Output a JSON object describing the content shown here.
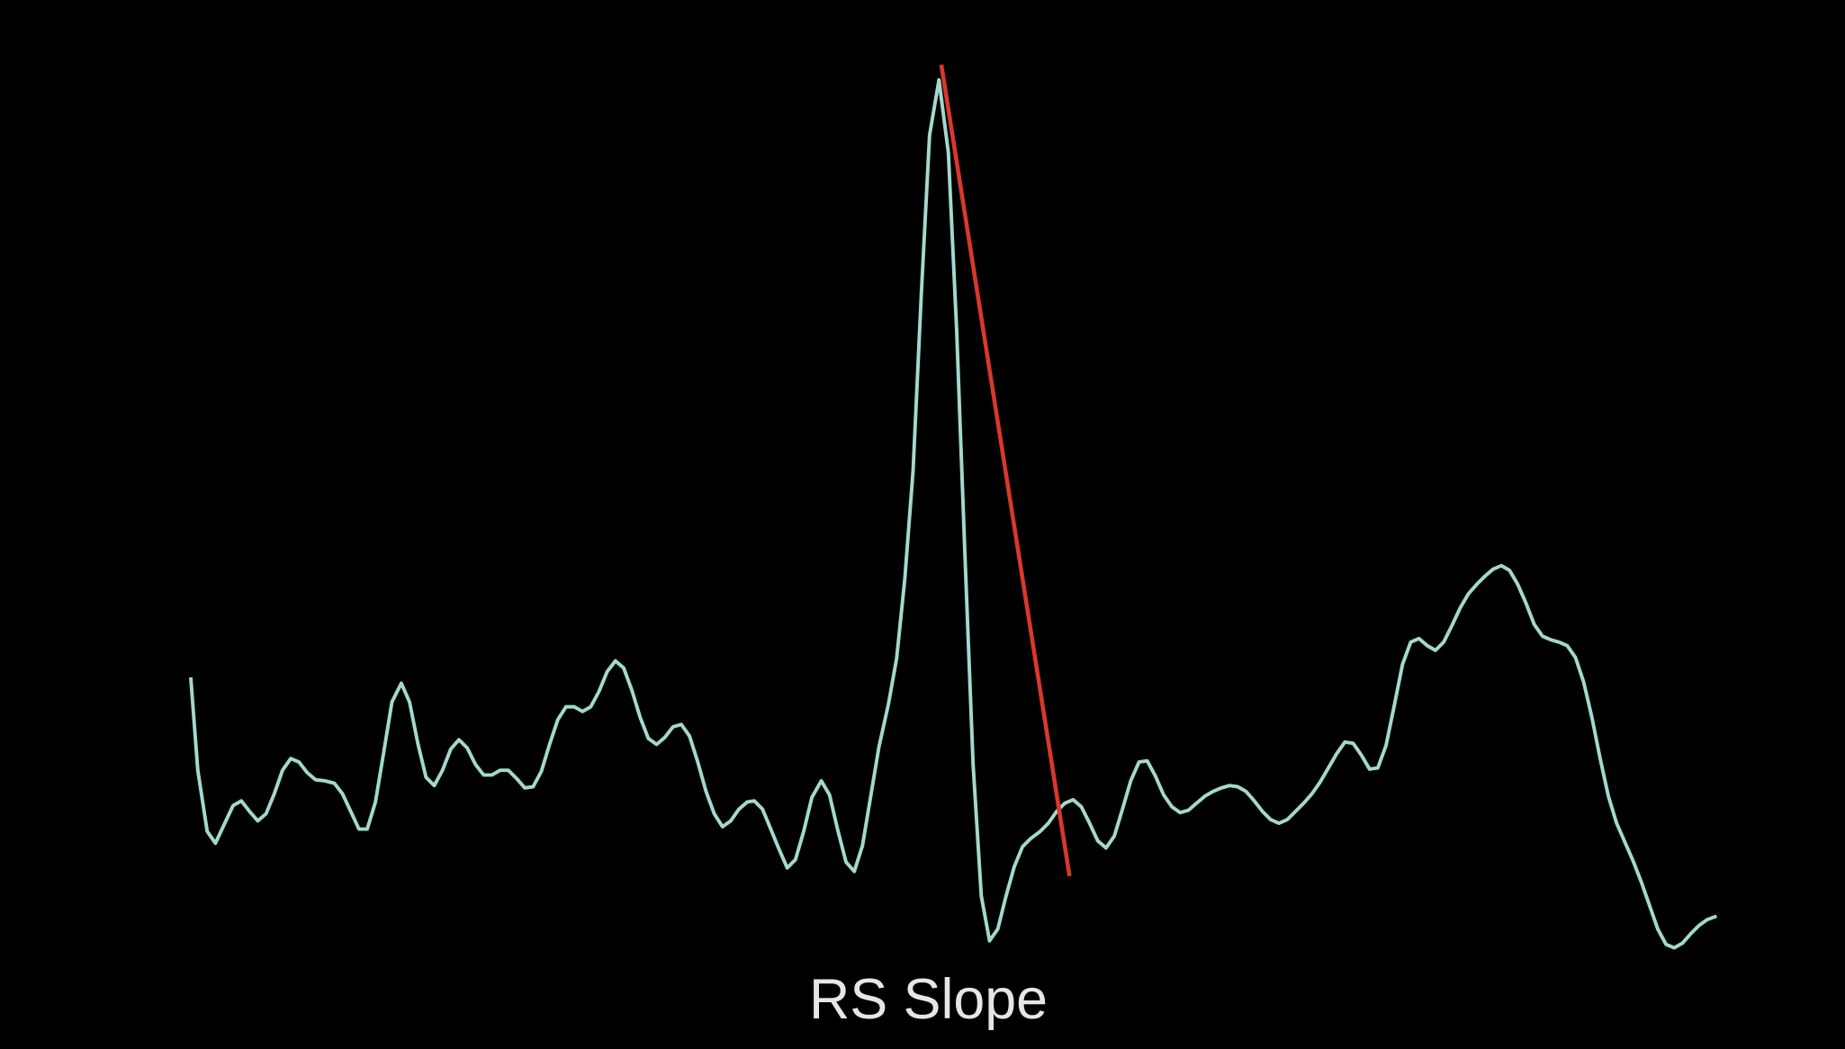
{
  "caption": "RS Slope"
}
